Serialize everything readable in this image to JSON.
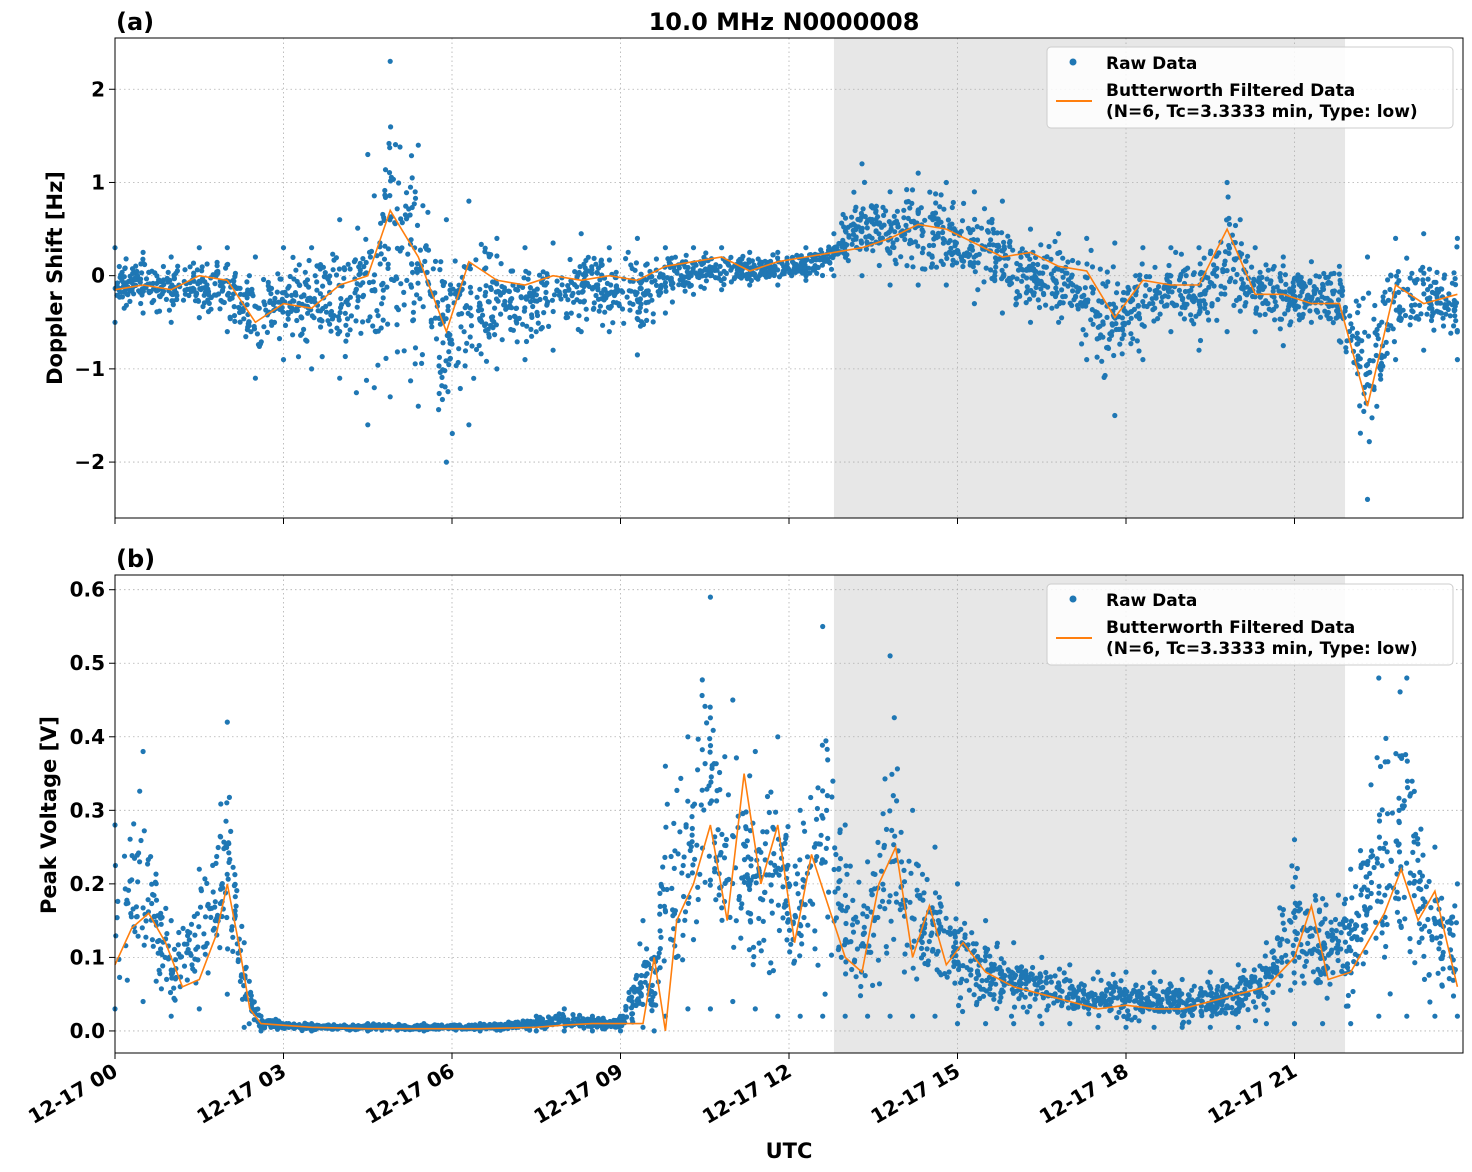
{
  "figure_title": "10.0 MHz N0000008",
  "xlabel": "UTC",
  "x_tick_labels": [
    "12-17 00",
    "12-17 03",
    "12-17 06",
    "12-17 09",
    "12-17 12",
    "12-17 15",
    "12-17 18",
    "12-17 21"
  ],
  "colors": {
    "raw": "#1f77b4",
    "filtered": "#ff7f0e",
    "shade": "#e7e7e7"
  },
  "chart_data": [
    {
      "type": "line",
      "panel_label": "(a)",
      "title": "10.0 MHz N0000008",
      "xlabel": "",
      "ylabel": "Doppler Shift [Hz]",
      "x_unit": "hours UTC on 12-17",
      "xlim": [
        0,
        24
      ],
      "ylim": [
        -2.6,
        2.55
      ],
      "yticks": [
        -2,
        -1,
        0,
        1,
        2
      ],
      "ytick_labels": [
        "−2",
        "−1",
        "0",
        "1",
        "2"
      ],
      "shaded_region": [
        12.8,
        21.9
      ],
      "grid": true,
      "legend_position": "upper right",
      "series": [
        {
          "name": "Raw Data",
          "style": "points",
          "x": [
            0.0,
            0.5,
            1.0,
            1.5,
            2.0,
            2.5,
            3.0,
            3.5,
            4.0,
            4.5,
            4.9,
            5.4,
            5.9,
            6.3,
            6.8,
            7.3,
            7.8,
            8.3,
            8.8,
            9.3,
            9.8,
            10.3,
            10.8,
            11.3,
            11.8,
            12.3,
            12.8,
            13.3,
            13.8,
            14.3,
            14.8,
            15.3,
            15.8,
            16.3,
            16.8,
            17.3,
            17.8,
            18.3,
            18.8,
            19.3,
            19.8,
            20.3,
            20.8,
            21.3,
            21.8,
            22.3,
            22.8,
            23.3,
            23.9
          ],
          "upper": [
            0.3,
            0.25,
            0.2,
            0.3,
            0.3,
            0.2,
            0.3,
            0.3,
            0.6,
            1.3,
            2.3,
            1.4,
            0.6,
            0.8,
            0.4,
            0.3,
            0.35,
            0.45,
            0.3,
            0.4,
            0.3,
            0.3,
            0.3,
            0.25,
            0.25,
            0.3,
            0.45,
            1.2,
            0.9,
            1.1,
            1.0,
            0.9,
            0.8,
            0.5,
            0.45,
            0.4,
            0.35,
            0.3,
            0.3,
            0.3,
            1.0,
            0.3,
            0.2,
            0.15,
            0.1,
            0.2,
            0.4,
            0.45,
            0.4
          ],
          "lower": [
            -0.5,
            -0.4,
            -0.5,
            -0.45,
            -0.6,
            -1.1,
            -0.9,
            -1.0,
            -1.1,
            -1.6,
            -1.3,
            -1.4,
            -2.0,
            -1.6,
            -1.0,
            -0.9,
            -0.8,
            -0.6,
            -0.6,
            -0.85,
            -0.4,
            -0.2,
            -0.15,
            -0.1,
            -0.1,
            -0.05,
            0.0,
            0.0,
            -0.1,
            -0.1,
            -0.1,
            -0.3,
            -0.4,
            -0.5,
            -0.5,
            -0.9,
            -1.5,
            -0.9,
            -0.6,
            -0.8,
            -0.6,
            -0.6,
            -0.75,
            -0.5,
            -0.7,
            -2.4,
            -0.9,
            -0.8,
            -0.9
          ]
        },
        {
          "name": "Butterworth Filtered Data\n(N=6, Tc=3.3333 min, Type: low)",
          "style": "line",
          "x": [
            0.0,
            0.5,
            1.0,
            1.5,
            2.0,
            2.5,
            3.0,
            3.5,
            4.0,
            4.5,
            4.9,
            5.4,
            5.9,
            6.3,
            6.8,
            7.3,
            7.8,
            8.3,
            8.8,
            9.3,
            9.8,
            10.3,
            10.8,
            11.3,
            11.8,
            12.3,
            12.8,
            13.3,
            13.8,
            14.3,
            14.8,
            15.3,
            15.8,
            16.3,
            16.8,
            17.3,
            17.8,
            18.3,
            18.8,
            19.3,
            19.8,
            20.3,
            20.8,
            21.3,
            21.8,
            22.3,
            22.8,
            23.3,
            23.9
          ],
          "values": [
            -0.15,
            -0.1,
            -0.15,
            0.0,
            -0.05,
            -0.5,
            -0.3,
            -0.35,
            -0.1,
            0.0,
            0.7,
            0.2,
            -0.6,
            0.15,
            -0.05,
            -0.1,
            0.0,
            -0.05,
            0.0,
            -0.05,
            0.1,
            0.15,
            0.2,
            0.05,
            0.15,
            0.2,
            0.25,
            0.3,
            0.4,
            0.55,
            0.5,
            0.35,
            0.2,
            0.25,
            0.1,
            0.05,
            -0.45,
            -0.05,
            -0.1,
            -0.1,
            0.5,
            -0.2,
            -0.2,
            -0.3,
            -0.3,
            -1.4,
            -0.1,
            -0.3,
            -0.2
          ]
        }
      ]
    },
    {
      "type": "line",
      "panel_label": "(b)",
      "title": "",
      "xlabel": "UTC",
      "ylabel": "Peak Voltage [V]",
      "x_unit": "hours UTC on 12-17",
      "xlim": [
        0,
        24
      ],
      "ylim": [
        -0.03,
        0.62
      ],
      "yticks": [
        0.0,
        0.1,
        0.2,
        0.3,
        0.4,
        0.5,
        0.6
      ],
      "ytick_labels": [
        "0.0",
        "0.1",
        "0.2",
        "0.3",
        "0.4",
        "0.5",
        "0.6"
      ],
      "shaded_region": [
        12.8,
        21.9
      ],
      "grid": true,
      "legend_position": "upper right",
      "series": [
        {
          "name": "Raw Data",
          "style": "points",
          "x": [
            0.0,
            0.5,
            1.0,
            1.5,
            2.0,
            2.3,
            2.6,
            3.5,
            4.5,
            5.5,
            6.5,
            7.5,
            8.0,
            8.5,
            9.0,
            9.4,
            9.6,
            9.8,
            10.2,
            10.6,
            11.0,
            11.4,
            11.8,
            12.2,
            12.6,
            13.0,
            13.4,
            13.8,
            14.2,
            14.6,
            15.0,
            15.5,
            16.0,
            16.5,
            17.0,
            17.5,
            18.0,
            18.5,
            19.0,
            19.5,
            20.0,
            20.5,
            21.0,
            21.5,
            22.0,
            22.5,
            23.0,
            23.5,
            23.9
          ],
          "upper": [
            0.28,
            0.38,
            0.15,
            0.22,
            0.42,
            0.12,
            0.02,
            0.01,
            0.01,
            0.01,
            0.01,
            0.02,
            0.03,
            0.02,
            0.02,
            0.15,
            0.1,
            0.36,
            0.4,
            0.59,
            0.45,
            0.38,
            0.4,
            0.3,
            0.55,
            0.28,
            0.23,
            0.51,
            0.3,
            0.25,
            0.2,
            0.15,
            0.12,
            0.1,
            0.09,
            0.08,
            0.08,
            0.08,
            0.07,
            0.08,
            0.09,
            0.12,
            0.26,
            0.18,
            0.22,
            0.48,
            0.48,
            0.25,
            0.2
          ],
          "lower": [
            0.03,
            0.04,
            0.02,
            0.03,
            0.05,
            0.005,
            0.0,
            0.0,
            0.0,
            0.0,
            0.0,
            0.0,
            0.0,
            0.0,
            0.0,
            0.005,
            0.0,
            0.02,
            0.03,
            0.03,
            0.04,
            0.03,
            0.02,
            0.02,
            0.02,
            0.02,
            0.02,
            0.02,
            0.02,
            0.02,
            0.01,
            0.01,
            0.01,
            0.01,
            0.01,
            0.005,
            0.005,
            0.005,
            0.005,
            0.005,
            0.005,
            0.01,
            0.01,
            0.01,
            0.01,
            0.02,
            0.02,
            0.02,
            0.02
          ]
        },
        {
          "name": "Butterworth Filtered Data\n(N=6, Tc=3.3333 min, Type: low)",
          "style": "line",
          "x": [
            0.0,
            0.3,
            0.6,
            0.9,
            1.2,
            1.5,
            1.8,
            2.0,
            2.2,
            2.4,
            2.6,
            3.5,
            4.5,
            5.5,
            6.5,
            7.5,
            8.0,
            8.5,
            9.0,
            9.4,
            9.6,
            9.8,
            10.0,
            10.3,
            10.6,
            10.9,
            11.2,
            11.5,
            11.8,
            12.1,
            12.4,
            12.7,
            13.0,
            13.3,
            13.6,
            13.9,
            14.2,
            14.5,
            14.8,
            15.1,
            15.5,
            16.0,
            16.5,
            17.0,
            17.5,
            18.0,
            18.5,
            19.0,
            19.5,
            20.0,
            20.5,
            21.0,
            21.3,
            21.6,
            22.0,
            22.3,
            22.6,
            22.9,
            23.2,
            23.5,
            23.9
          ],
          "values": [
            0.09,
            0.14,
            0.16,
            0.12,
            0.06,
            0.07,
            0.13,
            0.2,
            0.12,
            0.03,
            0.01,
            0.005,
            0.003,
            0.003,
            0.003,
            0.005,
            0.008,
            0.01,
            0.01,
            0.01,
            0.1,
            0.0,
            0.15,
            0.2,
            0.28,
            0.15,
            0.35,
            0.2,
            0.28,
            0.12,
            0.24,
            0.17,
            0.1,
            0.08,
            0.2,
            0.25,
            0.1,
            0.17,
            0.09,
            0.12,
            0.08,
            0.06,
            0.05,
            0.04,
            0.03,
            0.035,
            0.03,
            0.03,
            0.04,
            0.05,
            0.06,
            0.1,
            0.17,
            0.07,
            0.08,
            0.12,
            0.16,
            0.22,
            0.15,
            0.19,
            0.06
          ]
        }
      ]
    }
  ]
}
